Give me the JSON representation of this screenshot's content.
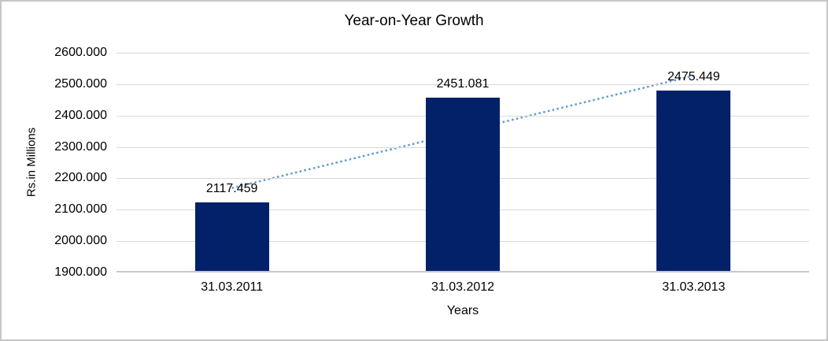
{
  "chart_data": {
    "type": "bar",
    "title": "Year-on-Year Growth",
    "categories": [
      "31.03.2011",
      "31.03.2012",
      "31.03.2013"
    ],
    "values": [
      2117.459,
      2451.081,
      2475.449
    ],
    "data_labels": [
      "2117.459",
      "2451.081",
      "2475.449"
    ],
    "xlabel": "Years",
    "ylabel": "Rs.in Millions",
    "ylim": [
      1900,
      2600
    ],
    "ytick_step": 100,
    "ytick_labels": [
      "2600.000",
      "2500.000",
      "2400.000",
      "2300.000",
      "2200.000",
      "2100.000",
      "2000.000",
      "1900.000"
    ],
    "grid": true,
    "legend": "none",
    "trendline": {
      "type": "linear",
      "style": "dotted"
    },
    "colors": {
      "bar": "#022169",
      "trendline": "#5b9bd5",
      "gridline": "#d9d9d9",
      "axis_line": "#c9c9c9",
      "text": "#000000",
      "frame_border": "#c6c6c6",
      "background": "#ffffff"
    }
  }
}
